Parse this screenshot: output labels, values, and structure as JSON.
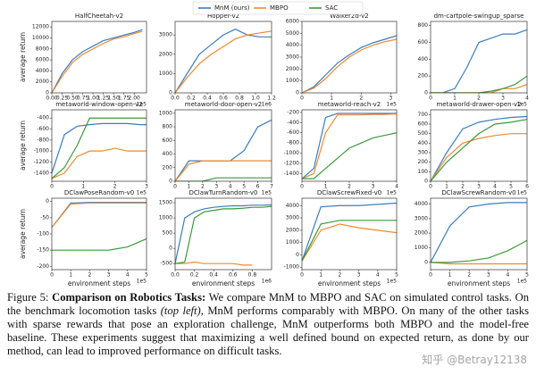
{
  "chart_data": [
    {
      "type": "line",
      "title": "HalfCheetah-v2",
      "ylabel": "average return",
      "x_scale_label": "1e5",
      "x": [
        0,
        0.25,
        0.5,
        0.75,
        1,
        1.25,
        1.5,
        1.75,
        2,
        2.2
      ],
      "series": [
        {
          "name": "MnM (ours)",
          "color": "#3b7dbf",
          "values": [
            0,
            3500,
            6000,
            7500,
            8500,
            9500,
            10000,
            10500,
            11000,
            11500
          ]
        },
        {
          "name": "MBPO",
          "color": "#ef8a2e",
          "values": [
            0,
            3000,
            5500,
            7000,
            8000,
            9000,
            9800,
            10200,
            10800,
            11200
          ]
        }
      ],
      "xlim": [
        0,
        2.3
      ],
      "xticks": [
        {
          "value": 0,
          "label": "0.00"
        },
        {
          "value": 0.25,
          "label": "0.25"
        },
        {
          "value": 0.5,
          "label": "0.50"
        },
        {
          "value": 0.75,
          "label": "0.75"
        },
        {
          "value": 1,
          "label": "1.00"
        },
        {
          "value": 1.25,
          "label": "1.25"
        },
        {
          "value": 1.5,
          "label": "1.50"
        },
        {
          "value": 1.75,
          "label": "1.75"
        },
        {
          "value": 2,
          "label": "2.00"
        }
      ],
      "ylim": [
        0,
        13000
      ],
      "yticks": [
        0,
        2000,
        4000,
        6000,
        8000,
        10000,
        12000
      ]
    },
    {
      "type": "line",
      "title": "Hopper-v2",
      "x_scale_label": "1e6",
      "x": [
        0,
        0.15,
        0.3,
        0.45,
        0.6,
        0.75,
        0.9,
        1.05,
        1.2
      ],
      "series": [
        {
          "name": "MnM (ours)",
          "color": "#3b7dbf",
          "values": [
            0,
            1000,
            2000,
            2500,
            3000,
            3300,
            3000,
            2900,
            2900
          ]
        },
        {
          "name": "MBPO",
          "color": "#ef8a2e",
          "values": [
            0,
            800,
            1500,
            2000,
            2400,
            2800,
            3000,
            3100,
            3200
          ]
        }
      ],
      "xlim": [
        0,
        1.2
      ],
      "xticks": [
        {
          "value": 0,
          "label": "0.0"
        },
        {
          "value": 0.2,
          "label": "0.2"
        },
        {
          "value": 0.4,
          "label": "0.4"
        },
        {
          "value": 0.6,
          "label": "0.6"
        },
        {
          "value": 0.8,
          "label": "0.8"
        },
        {
          "value": 1,
          "label": "1.0"
        },
        {
          "value": 1.2,
          "label": "1.2"
        }
      ],
      "ylim": [
        0,
        3700
      ],
      "yticks": [
        0,
        1000,
        2000,
        3000
      ]
    },
    {
      "type": "line",
      "title": "Walker2d-v2",
      "x_scale_label": "1e5",
      "x": [
        0,
        0.4,
        0.8,
        1.2,
        1.6,
        2,
        2.4,
        2.8,
        3.2
      ],
      "series": [
        {
          "name": "MnM (ours)",
          "color": "#3b7dbf",
          "values": [
            0,
            500,
            1500,
            2500,
            3200,
            3800,
            4200,
            4500,
            4800
          ]
        },
        {
          "name": "MBPO",
          "color": "#ef8a2e",
          "values": [
            0,
            400,
            1200,
            2200,
            3000,
            3600,
            4000,
            4300,
            4500
          ]
        }
      ],
      "xlim": [
        0,
        3.2
      ],
      "xticks": [
        0,
        1,
        2,
        3
      ],
      "ylim": [
        0,
        6000
      ],
      "yticks": [
        0,
        1000,
        2000,
        3000,
        4000,
        5000,
        6000
      ]
    },
    {
      "type": "line",
      "title": "dm-cartpole-swingup_sparse",
      "x_scale_label": "1e5",
      "x": [
        0,
        0.5,
        1,
        1.5,
        2,
        2.5,
        3,
        3.5,
        4
      ],
      "series": [
        {
          "name": "MnM (ours)",
          "color": "#3b7dbf",
          "values": [
            0,
            0,
            50,
            300,
            600,
            650,
            700,
            700,
            750
          ]
        },
        {
          "name": "MBPO",
          "color": "#ef8a2e",
          "values": [
            0,
            0,
            0,
            0,
            0,
            0,
            50,
            50,
            100
          ]
        },
        {
          "name": "SAC",
          "color": "#3a9a3a",
          "values": [
            0,
            0,
            0,
            0,
            0,
            20,
            50,
            100,
            200
          ]
        }
      ],
      "xlim": [
        0,
        4
      ],
      "xticks": [
        0,
        1,
        2,
        3,
        4
      ],
      "ylim": [
        0,
        850
      ],
      "yticks": [
        0,
        200,
        400,
        600,
        800
      ]
    },
    {
      "type": "line",
      "title": "metaworld-window-open-v2",
      "ylabel": "average return",
      "x_scale_label": "1e5",
      "x": [
        0,
        0.4,
        0.8,
        1.2,
        1.6,
        2,
        2.4,
        2.8,
        3
      ],
      "series": [
        {
          "name": "MnM (ours)",
          "color": "#3b7dbf",
          "values": [
            -1400,
            -700,
            -550,
            -520,
            -500,
            -500,
            -500,
            -520,
            -520
          ]
        },
        {
          "name": "MBPO",
          "color": "#ef8a2e",
          "values": [
            -1500,
            -1400,
            -1100,
            -1000,
            -1000,
            -950,
            -1000,
            -1000,
            -1000
          ]
        },
        {
          "name": "SAC",
          "color": "#3a9a3a",
          "values": [
            -1500,
            -1300,
            -900,
            -400,
            -400,
            -400,
            -400,
            -400,
            -400
          ]
        }
      ],
      "xlim": [
        0,
        3
      ],
      "xticks": [
        0,
        1,
        2,
        3
      ],
      "ylim": [
        -1550,
        -250
      ],
      "yticks": [
        -1400,
        -1200,
        -1000,
        -800,
        -600,
        -400
      ]
    },
    {
      "type": "line",
      "title": "metaworld-door-open-v2",
      "x_scale_label": "1e5",
      "x": [
        0,
        1,
        2,
        3,
        4,
        5,
        6,
        7
      ],
      "series": [
        {
          "name": "MnM (ours)",
          "color": "#3b7dbf",
          "values": [
            0,
            300,
            300,
            300,
            300,
            450,
            800,
            900
          ]
        },
        {
          "name": "MBPO",
          "color": "#ef8a2e",
          "values": [
            0,
            250,
            300,
            300,
            300,
            300,
            300,
            300
          ]
        },
        {
          "name": "SAC",
          "color": "#3a9a3a",
          "values": [
            0,
            0,
            0,
            50,
            50,
            50,
            50,
            50
          ]
        }
      ],
      "xlim": [
        0,
        7
      ],
      "xticks": [
        0,
        1,
        2,
        3,
        4,
        5,
        6,
        7
      ],
      "ylim": [
        0,
        1050
      ],
      "yticks": [
        0,
        200,
        400,
        600,
        800,
        1000
      ]
    },
    {
      "type": "line",
      "title": "metaworld-reach-v2",
      "x_scale_label": "1e5",
      "x": [
        0,
        0.5,
        1,
        1.5,
        2,
        2.5,
        3,
        3.5,
        4
      ],
      "series": [
        {
          "name": "MnM (ours)",
          "color": "#3b7dbf",
          "values": [
            -1500,
            -1300,
            -300,
            -220,
            -220,
            -220,
            -220,
            -220,
            -220
          ]
        },
        {
          "name": "MBPO",
          "color": "#ef8a2e",
          "values": [
            -1500,
            -1400,
            -600,
            -250,
            -250,
            -250,
            -240,
            -240,
            -230
          ]
        },
        {
          "name": "SAC",
          "color": "#3a9a3a",
          "values": [
            -1500,
            -1500,
            -1300,
            -1100,
            -900,
            -800,
            -700,
            -650,
            -600
          ]
        }
      ],
      "xlim": [
        0,
        4
      ],
      "xticks": [
        0,
        1,
        2,
        3,
        4
      ],
      "ylim": [
        -1550,
        -150
      ],
      "yticks": [
        -1400,
        -1200,
        -1000,
        -800,
        -600,
        -400,
        -200
      ]
    },
    {
      "type": "line",
      "title": "metaworld-drawer-open-v2",
      "x_scale_label": "1e5",
      "x": [
        0,
        1,
        2,
        3,
        4,
        5,
        6
      ],
      "series": [
        {
          "name": "MnM (ours)",
          "color": "#3b7dbf",
          "values": [
            0,
            300,
            550,
            620,
            650,
            670,
            680
          ]
        },
        {
          "name": "MBPO",
          "color": "#ef8a2e",
          "values": [
            0,
            250,
            400,
            450,
            480,
            500,
            500
          ]
        },
        {
          "name": "SAC",
          "color": "#3a9a3a",
          "values": [
            0,
            200,
            350,
            500,
            600,
            620,
            650
          ]
        }
      ],
      "xlim": [
        0,
        6
      ],
      "xticks": [
        0,
        1,
        2,
        3,
        4,
        5,
        6
      ],
      "ylim": [
        0,
        750
      ],
      "yticks": [
        0,
        100,
        200,
        300,
        400,
        500,
        600,
        700
      ]
    },
    {
      "type": "line",
      "title": "DClawPoseRandom-v0",
      "ylabel": "average return",
      "xlabel": "environment steps",
      "x_scale_label": "1e5",
      "x": [
        0,
        1,
        2,
        3,
        4,
        5
      ],
      "series": [
        {
          "name": "MnM (ours)",
          "color": "#3b7dbf",
          "values": [
            -80,
            -5,
            -3,
            -3,
            -3,
            -3
          ]
        },
        {
          "name": "MBPO",
          "color": "#ef8a2e",
          "values": [
            -80,
            -8,
            -5,
            -5,
            -5,
            -5
          ]
        },
        {
          "name": "SAC",
          "color": "#3a9a3a",
          "values": [
            -150,
            -150,
            -150,
            -150,
            -140,
            -115
          ]
        }
      ],
      "xlim": [
        0,
        5
      ],
      "xticks": [
        0,
        1,
        2,
        3,
        4,
        5
      ],
      "ylim": [
        -210,
        10
      ],
      "yticks": [
        -200,
        -150,
        -100,
        -50,
        0
      ]
    },
    {
      "type": "line",
      "title": "DClawTurnRandom-v0",
      "xlabel": "environment steps",
      "x_scale_label": "1e6",
      "x": [
        0,
        0.1,
        0.2,
        0.3,
        0.4,
        0.5,
        0.6,
        0.7,
        0.8,
        0.9,
        1
      ],
      "series": [
        {
          "name": "MnM (ours)",
          "color": "#3b7dbf",
          "values": [
            -500,
            1000,
            1200,
            1300,
            1350,
            1380,
            1400,
            1400,
            1420,
            1420,
            1430
          ]
        },
        {
          "name": "MBPO",
          "color": "#ef8a2e",
          "values": [
            -500,
            -500,
            -450,
            -500,
            -500,
            -500,
            -500,
            -550,
            -550,
            null,
            null
          ]
        },
        {
          "name": "SAC",
          "color": "#3a9a3a",
          "values": [
            -500,
            -450,
            1000,
            1200,
            1250,
            1300,
            1300,
            1320,
            1350,
            1350,
            1380
          ]
        }
      ],
      "xlim": [
        0,
        1
      ],
      "xticks": [
        {
          "value": 0,
          "label": "0.0"
        },
        {
          "value": 0.2,
          "label": "0.2"
        },
        {
          "value": 0.4,
          "label": "0.4"
        },
        {
          "value": 0.6,
          "label": "0.6"
        },
        {
          "value": 0.8,
          "label": "0.8"
        }
      ],
      "ylim": [
        -700,
        1650
      ],
      "yticks": [
        -500,
        0,
        500,
        1000,
        1500
      ]
    },
    {
      "type": "line",
      "title": "DClawScrewFixed-v0",
      "xlabel": "environment steps",
      "x_scale_label": "1e5",
      "x": [
        0,
        1,
        2,
        3,
        4,
        5
      ],
      "series": [
        {
          "name": "MnM (ours)",
          "color": "#3b7dbf",
          "values": [
            -500,
            3900,
            4000,
            4000,
            4100,
            4200
          ]
        },
        {
          "name": "MBPO",
          "color": "#ef8a2e",
          "values": [
            -500,
            2000,
            2500,
            2200,
            2000,
            1800
          ]
        },
        {
          "name": "SAC",
          "color": "#3a9a3a",
          "values": [
            -500,
            2500,
            2800,
            2800,
            2800,
            2800
          ]
        }
      ],
      "xlim": [
        0,
        5
      ],
      "xticks": [
        0,
        1,
        2,
        3,
        4,
        5
      ],
      "ylim": [
        -1200,
        4600
      ],
      "yticks": [
        -1000,
        0,
        1000,
        2000,
        3000,
        4000
      ]
    },
    {
      "type": "line",
      "title": "DClawScrewRandom-v0",
      "xlabel": "environment steps",
      "x_scale_label": "1e5",
      "x": [
        0,
        1,
        2,
        3,
        4,
        5
      ],
      "series": [
        {
          "name": "MnM (ours)",
          "color": "#3b7dbf",
          "values": [
            0,
            2500,
            3800,
            4000,
            4100,
            4100
          ]
        },
        {
          "name": "MBPO",
          "color": "#ef8a2e",
          "values": [
            0,
            -100,
            -100,
            -100,
            -100,
            -100
          ]
        },
        {
          "name": "SAC",
          "color": "#3a9a3a",
          "values": [
            0,
            0,
            100,
            300,
            800,
            1500
          ]
        }
      ],
      "xlim": [
        0,
        5
      ],
      "xticks": [
        0,
        1,
        2,
        3,
        4,
        5
      ],
      "ylim": [
        -500,
        4400
      ],
      "yticks": [
        0,
        1000,
        2000,
        3000,
        4000
      ]
    }
  ],
  "caption": {
    "label": "Figure 5:",
    "heading": "Comparison on Robotics Tasks:",
    "text_1": "We compare MnM to MBPO and SAC on simulated control tasks. On the benchmark locomotion tasks",
    "emphasis": "(top left)",
    "text_2": ", MnM performs comparably with MBPO. On many of the other tasks with sparse rewards that pose an exploration challenge, MnM outperforms both MBPO and the model-free baseline. These experiments suggest that maximizing a well defined bound on expected return, as done by our method, can lead to improved performance on difficult tasks."
  },
  "watermark": "知乎 @Betray12138"
}
